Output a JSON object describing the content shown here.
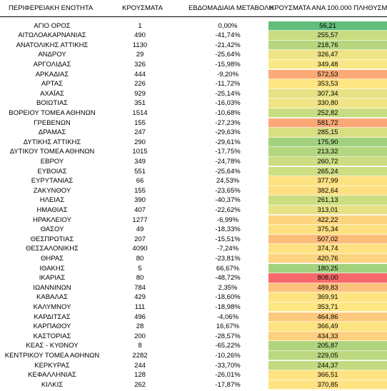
{
  "headers": {
    "region": "ΠΕΡΙΦΕΡΕΙΑΚΗ ΕΝΟΤΗΤΑ",
    "cases": "ΚΡΟΥΣΜΑΤΑ",
    "weekly_change": "ΕΒΔΟΜΑΔΙΑΙΑ ΜΕΤΑΒΟΛΗ",
    "per_100k": "ΚΡΟΥΣΜΑΤΑ ΑΝΑ 100.000 ΠΛΗΘΥΣΜΟ"
  },
  "rows": [
    {
      "region": "ΑΓΙΟ ΟΡΟΣ",
      "cases": "1",
      "change": "0,00%",
      "rate": "56,21",
      "color": "#63be7b"
    },
    {
      "region": "ΑΙΤΩΛΟΑΚΑΡΝΑΝΙΑΣ",
      "cases": "490",
      "change": "-41,74%",
      "rate": "255,57",
      "color": "#c9dc81"
    },
    {
      "region": "ΑΝΑΤΟΛΙΚΗΣ ΑΤΤΙΚΗΣ",
      "cases": "1130",
      "change": "-21,42%",
      "rate": "218,76",
      "color": "#b6d77f"
    },
    {
      "region": "ΑΝΔΡΟΥ",
      "cases": "29",
      "change": "-25,64%",
      "rate": "326,47",
      "color": "#eee586"
    },
    {
      "region": "ΑΡΓΟΛΙΔΑΣ",
      "cases": "326",
      "change": "-15,98%",
      "rate": "349,48",
      "color": "#fae886"
    },
    {
      "region": "ΑΡΚΑΔΙΑΣ",
      "cases": "444",
      "change": "-9,20%",
      "rate": "572,53",
      "color": "#fbaa77"
    },
    {
      "region": "ΑΡΤΑΣ",
      "cases": "226",
      "change": "-11,72%",
      "rate": "353,53",
      "color": "#fee683"
    },
    {
      "region": "ΑΧΑΪΑΣ",
      "cases": "929",
      "change": "-25,14%",
      "rate": "307,34",
      "color": "#e4e284"
    },
    {
      "region": "ΒΟΙΩΤΙΑΣ",
      "cases": "351",
      "change": "-16,03%",
      "rate": "330,80",
      "color": "#f0e586"
    },
    {
      "region": "ΒΟΡΕΙΟΥ ΤΟΜΕΑ ΑΘΗΝΩΝ",
      "cases": "1514",
      "change": "-10,68%",
      "rate": "252,82",
      "color": "#c8dc81"
    },
    {
      "region": "ΓΡΕΒΕΝΩΝ",
      "cases": "155",
      "change": "-27,23%",
      "rate": "581,72",
      "color": "#fba776"
    },
    {
      "region": "ΔΡΑΜΑΣ",
      "cases": "247",
      "change": "-29,63%",
      "rate": "285,15",
      "color": "#d8df83"
    },
    {
      "region": "ΔΥΤΙΚΗΣ ΑΤΤΙΚΗΣ",
      "cases": "290",
      "change": "-29,61%",
      "rate": "175,90",
      "color": "#a1d17e"
    },
    {
      "region": "ΔΥΤΙΚΟΥ ΤΟΜΕΑ ΑΘΗΝΩΝ",
      "cases": "1015",
      "change": "-17,75%",
      "rate": "213,32",
      "color": "#b4d67f"
    },
    {
      "region": "ΕΒΡΟΥ",
      "cases": "349",
      "change": "-24,78%",
      "rate": "260,72",
      "color": "#ccdd82"
    },
    {
      "region": "ΕΥΒΟΙΑΣ",
      "cases": "551",
      "change": "-25,64%",
      "rate": "265,24",
      "color": "#cede82"
    },
    {
      "region": "ΕΥΡΥΤΑΝΙΑΣ",
      "cases": "66",
      "change": "24,53%",
      "rate": "377,99",
      "color": "#fee182"
    },
    {
      "region": "ΖΑΚΥΝΘΟΥ",
      "cases": "155",
      "change": "-23,65%",
      "rate": "382,64",
      "color": "#fee082"
    },
    {
      "region": "ΗΛΕΙΑΣ",
      "cases": "390",
      "change": "-40,37%",
      "rate": "261,13",
      "color": "#ccdd82"
    },
    {
      "region": "ΗΜΑΘΙΑΣ",
      "cases": "407",
      "change": "-22,62%",
      "rate": "313,01",
      "color": "#e7e385"
    },
    {
      "region": "ΗΡΑΚΛΕΙΟΥ",
      "cases": "1277",
      "change": "-6,99%",
      "rate": "422,22",
      "color": "#fdd47f"
    },
    {
      "region": "ΘΑΣΟΥ",
      "cases": "49",
      "change": "-18,33%",
      "rate": "375,34",
      "color": "#fee182"
    },
    {
      "region": "ΘΕΣΠΡΩΤΙΑΣ",
      "cases": "207",
      "change": "-15,51%",
      "rate": "507,02",
      "color": "#fcbd7b"
    },
    {
      "region": "ΘΕΣΣΑΛΟΝΙΚΗΣ",
      "cases": "4090",
      "change": "-7,24%",
      "rate": "374,74",
      "color": "#fee182"
    },
    {
      "region": "ΘΗΡΑΣ",
      "cases": "80",
      "change": "-23,81%",
      "rate": "420,76",
      "color": "#fdd47f"
    },
    {
      "region": "ΙΘΑΚΗΣ",
      "cases": "5",
      "change": "66,67%",
      "rate": "180,25",
      "color": "#a3d27e"
    },
    {
      "region": "ΙΚΑΡΙΑΣ",
      "cases": "80",
      "change": "-48,72%",
      "rate": "808,00",
      "color": "#f8696b"
    },
    {
      "region": "ΙΩΑΝΝΙΝΩΝ",
      "cases": "784",
      "change": "2,35%",
      "rate": "489,83",
      "color": "#fcc27c"
    },
    {
      "region": "ΚΑΒΑΛΑΣ",
      "cases": "429",
      "change": "-18,60%",
      "rate": "369,91",
      "color": "#fee383"
    },
    {
      "region": "ΚΑΛΥΜΝΟΥ",
      "cases": "111",
      "change": "-18,98%",
      "rate": "353,71",
      "color": "#fee683"
    },
    {
      "region": "ΚΑΡΔΙΤΣΑΣ",
      "cases": "496",
      "change": "-4,06%",
      "rate": "464,86",
      "color": "#fdc97d"
    },
    {
      "region": "ΚΑΡΠΑΘΟΥ",
      "cases": "28",
      "change": "16,67%",
      "rate": "366,49",
      "color": "#fee383"
    },
    {
      "region": "ΚΑΣΤΟΡΙΑΣ",
      "cases": "200",
      "change": "-28,57%",
      "rate": "434,33",
      "color": "#fdd17f"
    },
    {
      "region": "ΚΕΑΣ - ΚΥΘΝΟΥ",
      "cases": "8",
      "change": "-65,22%",
      "rate": "205,87",
      "color": "#b0d57f"
    },
    {
      "region": "ΚΕΝΤΡΙΚΟΥ ΤΟΜΕΑ ΑΘΗΝΩΝ",
      "cases": "2282",
      "change": "-10,26%",
      "rate": "229,05",
      "color": "#bbd880"
    },
    {
      "region": "ΚΕΡΚΥΡΑΣ",
      "cases": "244",
      "change": "-33,70%",
      "rate": "244,37",
      "color": "#c3da81"
    },
    {
      "region": "ΚΕΦΑΛΛΗΝΙΑΣ",
      "cases": "128",
      "change": "-26,01%",
      "rate": "366,51",
      "color": "#fee383"
    },
    {
      "region": "ΚΙΛΚΙΣ",
      "cases": "262",
      "change": "-17,87%",
      "rate": "370,85",
      "color": "#fee383"
    }
  ]
}
